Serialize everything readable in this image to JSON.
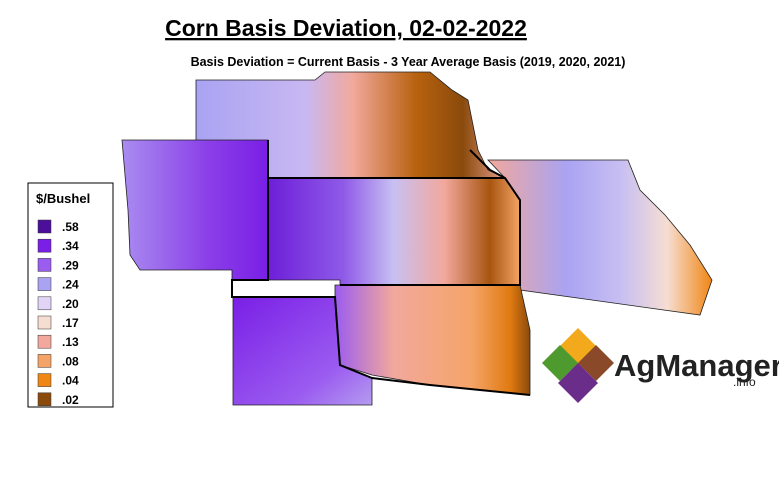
{
  "header": {
    "title": "Corn Basis Deviation, 02-02-2022",
    "subtitle": "Basis Deviation = Current Basis - 3 Year Average Basis (2019, 2020, 2021)"
  },
  "legend": {
    "title": "$/Bushel",
    "items": [
      {
        "label": ".58",
        "color": "#4b0f9a"
      },
      {
        "label": ".34",
        "color": "#7a1fe6"
      },
      {
        "label": ".29",
        "color": "#9b5cf0"
      },
      {
        "label": ".24",
        "color": "#a9a3f2"
      },
      {
        "label": ".20",
        "color": "#e2d4f7"
      },
      {
        "label": ".17",
        "color": "#f6ddd2"
      },
      {
        "label": ".13",
        "color": "#f2a89c"
      },
      {
        "label": ".08",
        "color": "#f5a468"
      },
      {
        "label": ".04",
        "color": "#f08614"
      },
      {
        "label": ".02",
        "color": "#8a4a0c"
      }
    ]
  },
  "logo": {
    "name": "AgManager",
    "suffix": ".info"
  }
}
